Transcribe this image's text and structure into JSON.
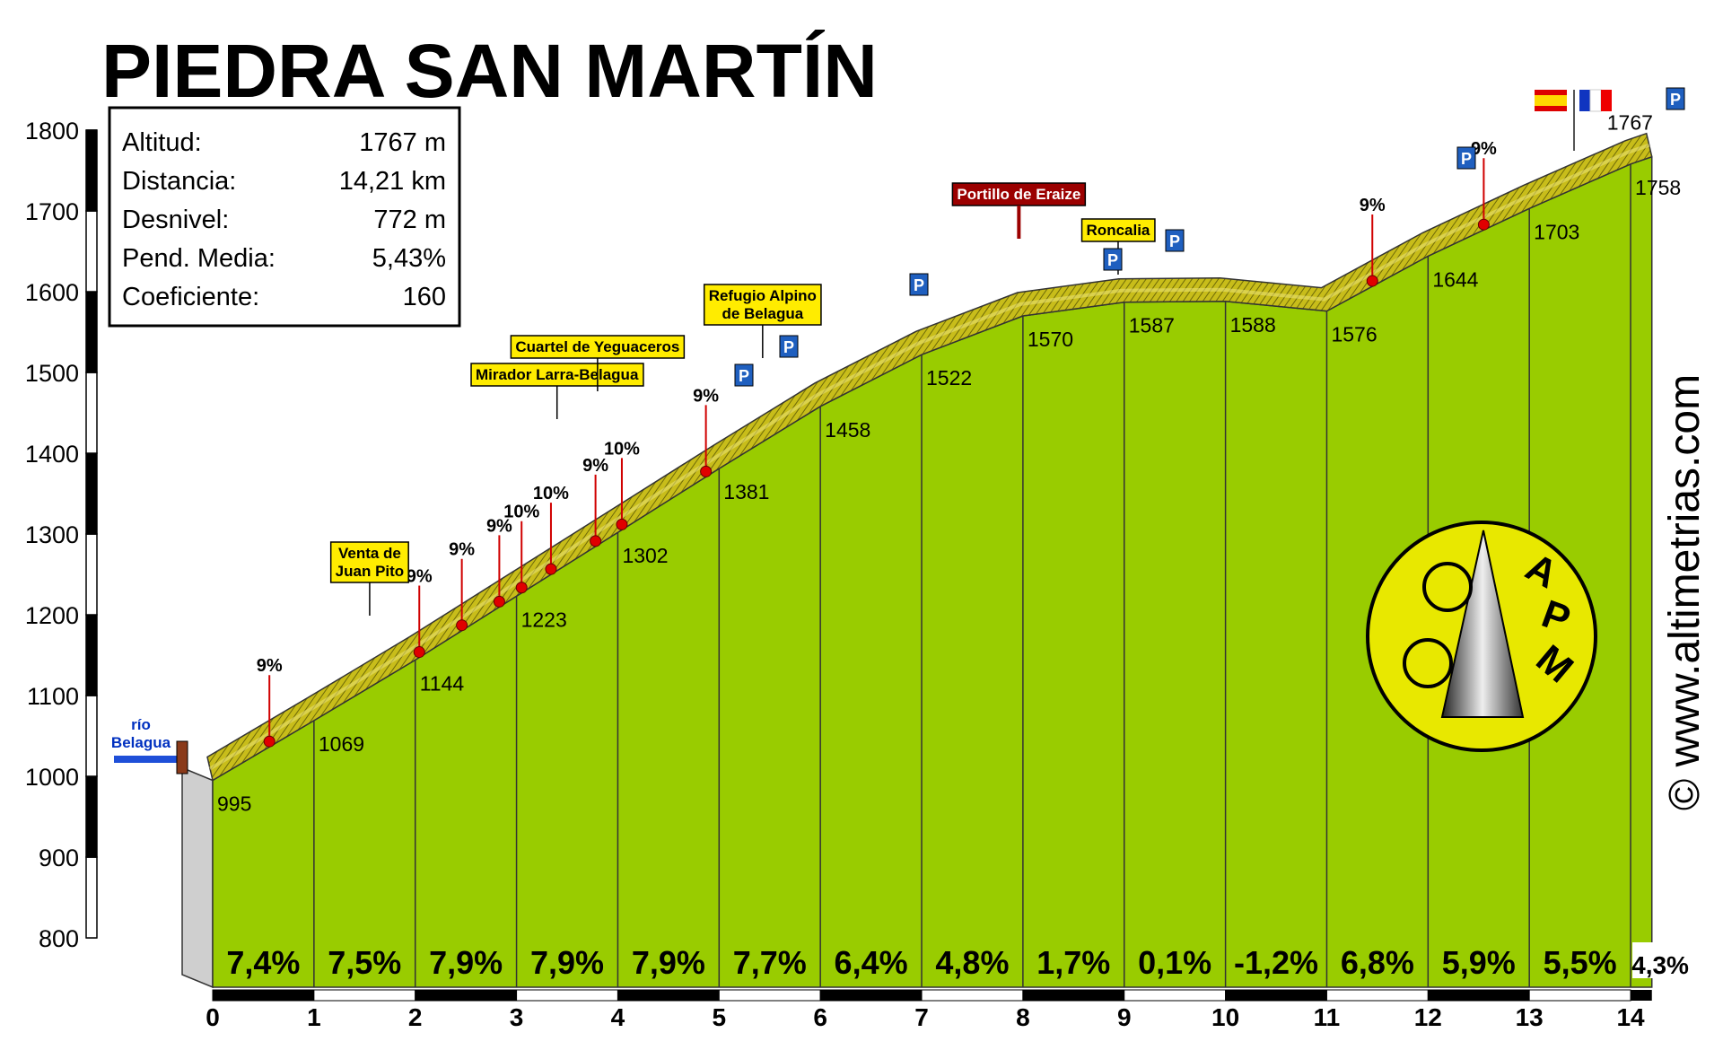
{
  "chart_data": {
    "type": "elevation-profile",
    "title": "PIEDRA SAN MARTÍN",
    "stats": [
      [
        "Altitud:",
        "1767 m"
      ],
      [
        "Distancia:",
        "14,21 km"
      ],
      [
        "Desnivel:",
        "772 m"
      ],
      [
        "Pend. Media:",
        "5,43%"
      ],
      [
        "Coeficiente:",
        "160"
      ]
    ],
    "x": [
      0,
      1,
      2,
      3,
      4,
      5,
      6,
      7,
      8,
      9,
      10,
      11,
      12,
      13,
      14,
      14.21
    ],
    "values": [
      995,
      1069,
      1144,
      1223,
      1302,
      1381,
      1458,
      1522,
      1570,
      1587,
      1588,
      1576,
      1644,
      1703,
      1758,
      1767
    ],
    "gradients": {
      "values": [
        7.4,
        7.5,
        7.9,
        7.9,
        7.9,
        7.7,
        6.4,
        4.8,
        1.7,
        0.1,
        -1.2,
        6.8,
        5.9,
        5.5,
        4.3
      ],
      "value_labels": [
        "7,4%",
        "7,5%",
        "7,9%",
        "7,9%",
        "7,9%",
        "7,7%",
        "6,4%",
        "4,8%",
        "1,7%",
        "0,1%",
        "-1,2%",
        "6,8%",
        "5,9%",
        "5,5%",
        "4,3%"
      ]
    },
    "xlim": [
      0,
      14.21
    ],
    "xticks": [
      0,
      1,
      2,
      3,
      4,
      5,
      6,
      7,
      8,
      9,
      10,
      11,
      12,
      13,
      14
    ],
    "ylim": [
      800,
      1800
    ],
    "yticks": [
      800,
      900,
      1000,
      1100,
      1200,
      1300,
      1400,
      1500,
      1600,
      1700,
      1800
    ],
    "color": "#99cc00",
    "annotations": [
      {
        "x": 0.56,
        "label": "9%"
      },
      {
        "x": 2.04,
        "label": "9%"
      },
      {
        "x": 2.46,
        "label": "9%"
      },
      {
        "x": 2.83,
        "label": "9%"
      },
      {
        "x": 3.05,
        "label": "10%"
      },
      {
        "x": 3.34,
        "label": "10%"
      },
      {
        "x": 3.78,
        "label": "9%"
      },
      {
        "x": 4.04,
        "label": "10%"
      },
      {
        "x": 4.87,
        "label": "9%"
      },
      {
        "x": 11.45,
        "label": "9%"
      },
      {
        "x": 12.55,
        "label": "9%"
      }
    ],
    "places": [
      {
        "x": 1.55,
        "lines": [
          "Venta de",
          "Juan Pito"
        ]
      },
      {
        "x": 3.4,
        "lines": [
          "Mirador Larra-Belagua"
        ]
      },
      {
        "x": 3.8,
        "lines": [
          "Cuartel de Yeguaceros"
        ]
      },
      {
        "x": 5.43,
        "lines": [
          "Refugio Alpino",
          "de Belagua"
        ]
      },
      {
        "x": 7.96,
        "lines": [
          "Portillo de Eraize"
        ]
      },
      {
        "x": 8.94,
        "lines": [
          "Roncalia"
        ]
      }
    ],
    "river": [
      "río",
      "Belagua"
    ],
    "parking_label": "P",
    "logo": [
      "A",
      "P",
      "M"
    ],
    "watermark": "© www.altimetrias.com"
  }
}
